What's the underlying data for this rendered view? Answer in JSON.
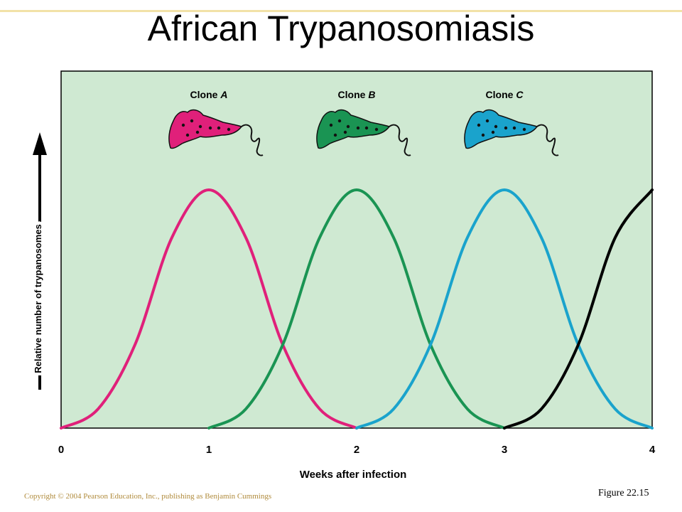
{
  "title": "African Trypanosomiasis",
  "copyright": "Copyright © 2004 Pearson Education, Inc., publishing as Benjamin Cummings",
  "figure_label": "Figure 22.15",
  "colors": {
    "plot_background": "#cfe9d2",
    "clone_a": "#e0207a",
    "clone_b": "#1a9453",
    "clone_c": "#1aa3cc",
    "next_clone": "#000000"
  },
  "chart_data": {
    "type": "line",
    "xlabel": "Weeks after infection",
    "ylabel": "Relative number of trypanosomes",
    "x_ticks": [
      "0",
      "1",
      "2",
      "3",
      "4"
    ],
    "xlim": [
      0,
      4
    ],
    "ylim": [
      0,
      1
    ],
    "grid": false,
    "legend": "none",
    "series": [
      {
        "name": "Clone A",
        "color": "#e0207a",
        "x": [
          0,
          0.25,
          0.5,
          0.75,
          1,
          1.25,
          1.5,
          1.75,
          2
        ],
        "y": [
          0,
          0.08,
          0.35,
          0.8,
          1,
          0.8,
          0.35,
          0.08,
          0
        ]
      },
      {
        "name": "Clone B",
        "color": "#1a9453",
        "x": [
          1,
          1.25,
          1.5,
          1.75,
          2,
          2.25,
          2.5,
          2.75,
          3
        ],
        "y": [
          0,
          0.08,
          0.35,
          0.8,
          1,
          0.8,
          0.35,
          0.08,
          0
        ]
      },
      {
        "name": "Clone C",
        "color": "#1aa3cc",
        "x": [
          2,
          2.25,
          2.5,
          2.75,
          3,
          3.25,
          3.5,
          3.75,
          4
        ],
        "y": [
          0,
          0.08,
          0.35,
          0.8,
          1,
          0.8,
          0.35,
          0.08,
          0
        ]
      },
      {
        "name": "",
        "color": "#000000",
        "x": [
          3,
          3.25,
          3.5,
          3.75,
          4
        ],
        "y": [
          0,
          0.08,
          0.35,
          0.8,
          1
        ]
      }
    ],
    "annotations": [
      "Clone A",
      "Clone B",
      "Clone C"
    ]
  }
}
